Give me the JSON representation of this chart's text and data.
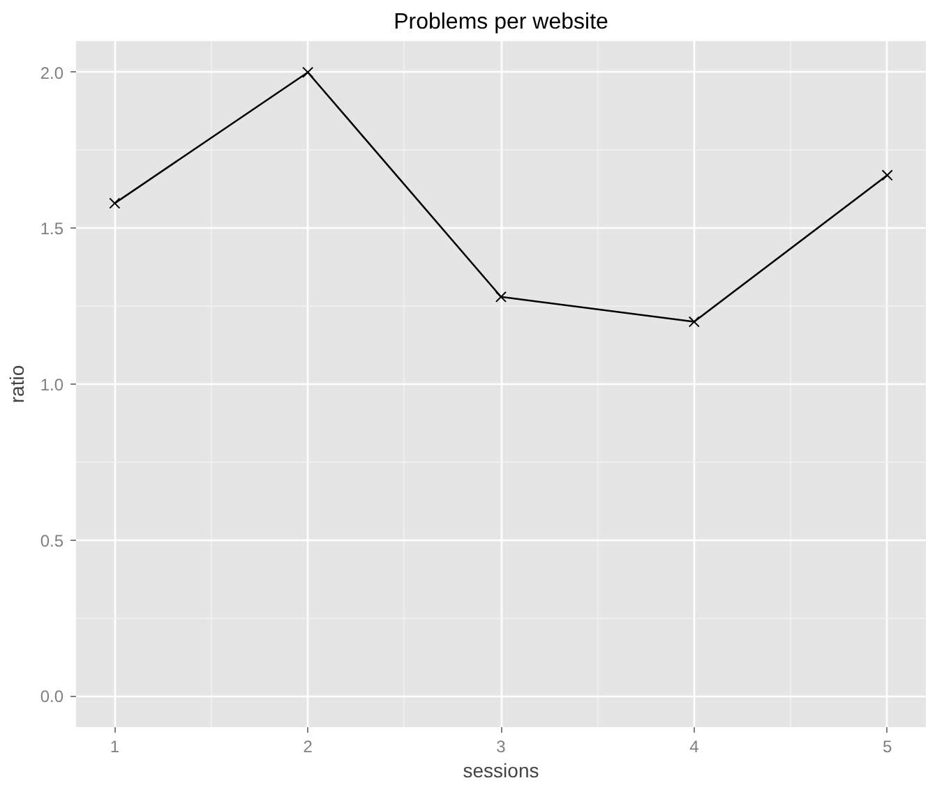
{
  "chart_data": {
    "type": "line",
    "title": "Problems per website",
    "xlabel": "sessions",
    "ylabel": "ratio",
    "x": [
      1,
      2,
      3,
      4,
      5
    ],
    "series": [
      {
        "color": "#000000",
        "values": [
          1.58,
          2.0,
          1.28,
          1.2,
          1.67
        ]
      }
    ],
    "xlim": [
      0.8,
      5.2
    ],
    "xticks": [
      1,
      2,
      3,
      4,
      5
    ],
    "ylim": [
      -0.1,
      2.1
    ],
    "yticks": [
      {
        "value": 0,
        "label": "0.0"
      },
      {
        "value": 0.5,
        "label": "0.5"
      },
      {
        "value": 1,
        "label": "1.0"
      },
      {
        "value": 1.5,
        "label": "1.5"
      },
      {
        "value": 2,
        "label": "2.0"
      }
    ],
    "grid": true,
    "marker": "cross",
    "line_style": "solid"
  }
}
